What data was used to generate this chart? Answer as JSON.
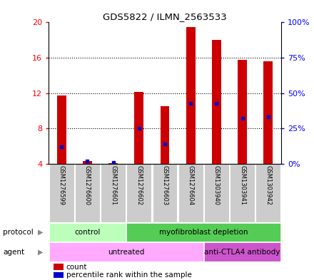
{
  "title": "GDS5822 / ILMN_2563533",
  "samples": [
    "GSM1276599",
    "GSM1276600",
    "GSM1276601",
    "GSM1276602",
    "GSM1276603",
    "GSM1276604",
    "GSM1303940",
    "GSM1303941",
    "GSM1303942"
  ],
  "counts": [
    11.7,
    4.3,
    4.05,
    12.1,
    10.5,
    19.5,
    18.0,
    15.8,
    15.6
  ],
  "percentile_rank_pct": [
    12,
    2,
    1,
    25,
    14,
    43,
    43,
    32,
    33
  ],
  "ylim_left": [
    4,
    20
  ],
  "ylim_right": [
    0,
    100
  ],
  "yticks_left": [
    4,
    8,
    12,
    16,
    20
  ],
  "yticks_left_labels": [
    "4",
    "8",
    "12",
    "16",
    "20"
  ],
  "yticks_right": [
    0,
    25,
    50,
    75,
    100
  ],
  "yticks_right_labels": [
    "0%",
    "25%",
    "50%",
    "75%",
    "100%"
  ],
  "bar_color": "#cc0000",
  "dot_color": "#0000cc",
  "bar_width": 0.35,
  "protocol_groups": [
    {
      "label": "control",
      "start": 0,
      "end": 3,
      "color": "#bbffbb"
    },
    {
      "label": "myofibroblast depletion",
      "start": 3,
      "end": 9,
      "color": "#55cc55"
    }
  ],
  "agent_groups": [
    {
      "label": "untreated",
      "start": 0,
      "end": 6,
      "color": "#ffaaff"
    },
    {
      "label": "anti-CTLA4 antibody",
      "start": 6,
      "end": 9,
      "color": "#cc55cc"
    }
  ],
  "legend_items": [
    {
      "label": "count",
      "color": "#cc0000"
    },
    {
      "label": "percentile rank within the sample",
      "color": "#0000cc"
    }
  ]
}
